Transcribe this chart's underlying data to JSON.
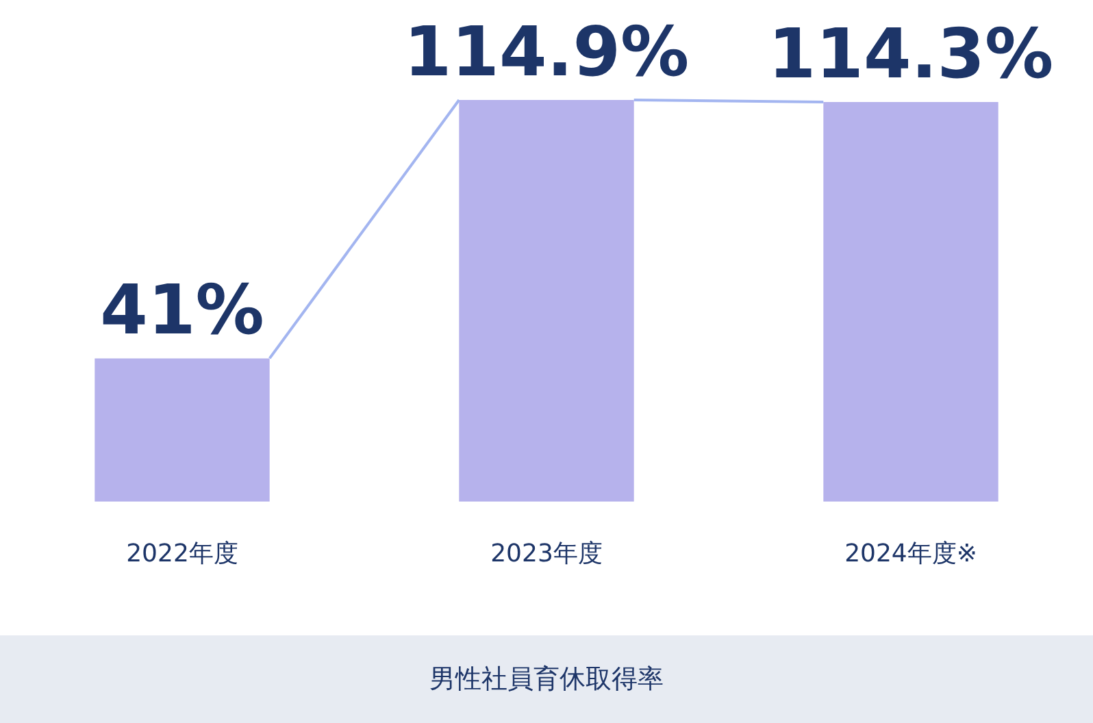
{
  "chart_data": {
    "type": "bar",
    "title": "男性社員育休取得率",
    "categories": [
      "2022年度",
      "2023年度",
      "2024年度※"
    ],
    "series": [
      {
        "color": "#b6b2ec",
        "values": [
          41,
          114.9,
          114.3
        ],
        "value_labels": [
          "41%",
          "114.9%",
          "114.3%"
        ]
      }
    ],
    "legend": false,
    "grid": false,
    "tick_labels": "x"
  }
}
